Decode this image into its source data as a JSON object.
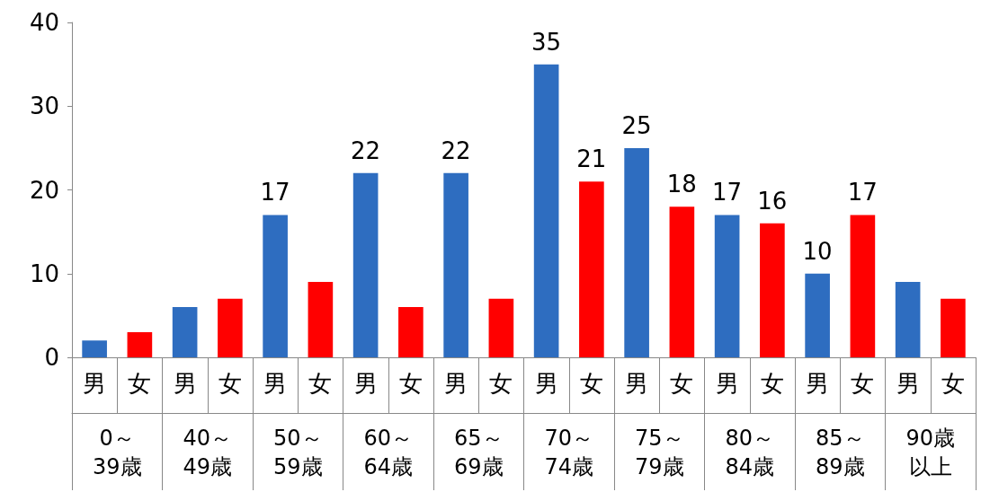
{
  "chart_data": {
    "type": "bar",
    "categories": [
      "男",
      "女",
      "男",
      "女",
      "男",
      "女",
      "男",
      "女",
      "男",
      "女",
      "男",
      "女",
      "男",
      "女",
      "男",
      "女",
      "男",
      "女",
      "男",
      "女"
    ],
    "values": [
      2,
      3,
      6,
      7,
      17,
      9,
      22,
      6,
      22,
      7,
      35,
      21,
      25,
      18,
      17,
      16,
      10,
      17,
      9,
      7
    ],
    "colors": [
      "#2e6dc0",
      "#ff0000",
      "#2e6dc0",
      "#ff0000",
      "#2e6dc0",
      "#ff0000",
      "#2e6dc0",
      "#ff0000",
      "#2e6dc0",
      "#ff0000",
      "#2e6dc0",
      "#ff0000",
      "#2e6dc0",
      "#ff0000",
      "#2e6dc0",
      "#ff0000",
      "#2e6dc0",
      "#ff0000",
      "#2e6dc0",
      "#ff0000"
    ],
    "value_labels": [
      null,
      null,
      null,
      null,
      "17",
      null,
      "22",
      null,
      "22",
      null,
      "35",
      "21",
      "25",
      "18",
      "17",
      "16",
      "10",
      "17",
      null,
      null
    ],
    "annotations": [
      "0～39歳",
      "40～49歳",
      "50～59歳",
      "60～64歳",
      "65～69歳",
      "70～74歳",
      "75～79歳",
      "80～84歳",
      "85～89歳",
      "90歳以上"
    ],
    "ylim": [
      0,
      40
    ],
    "yticks": [
      0,
      10,
      20,
      30,
      40
    ],
    "grid": false
  }
}
